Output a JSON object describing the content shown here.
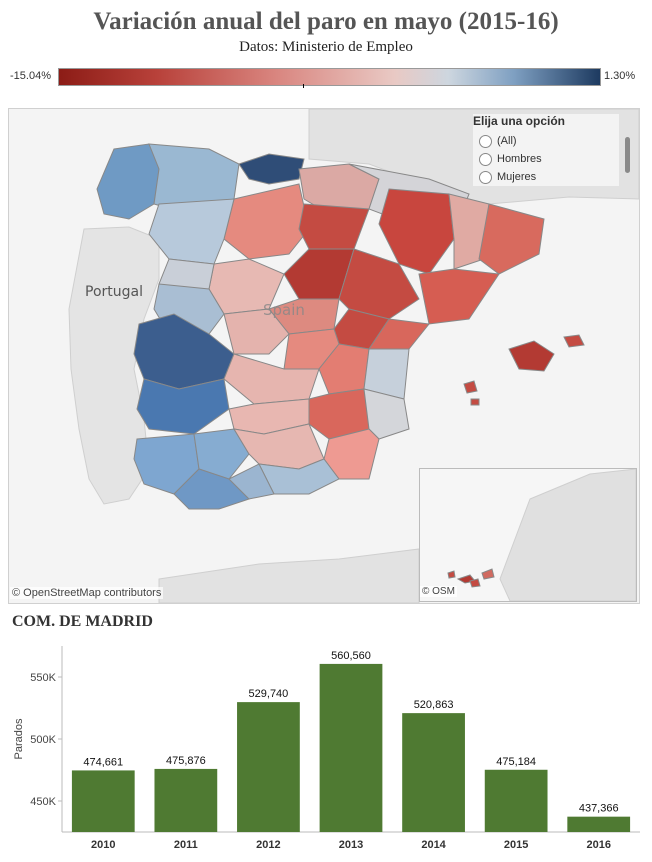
{
  "header": {
    "title": "Variación anual del paro en mayo (2015-16)",
    "subtitle": "Datos: Ministerio de Empleo"
  },
  "legend": {
    "min_label": "-15.04%",
    "max_label": "1.30%",
    "colors": {
      "neg": "#8c1c16",
      "mid": "#e8e8e8",
      "pos": "#1d3a60"
    }
  },
  "map": {
    "label_portugal": "Portugal",
    "label_spain": "Spain",
    "attribution": "© OpenStreetMap contributors",
    "inset_attribution": "© OSM"
  },
  "filter": {
    "title": "Elija una opción",
    "options": [
      "(All)",
      "Hombres",
      "Mujeres"
    ]
  },
  "section": {
    "title": "COM. DE MADRID"
  },
  "chart_data": {
    "type": "bar",
    "categories": [
      "2010",
      "2011",
      "2012",
      "2013",
      "2014",
      "2015",
      "2016"
    ],
    "values": [
      474661,
      475876,
      529740,
      560560,
      520863,
      475184,
      437366
    ],
    "value_labels": [
      "474,661",
      "475,876",
      "529,740",
      "560,560",
      "520,863",
      "475,184",
      "437,366"
    ],
    "ylabel": "Parados",
    "yticks": [
      450000,
      500000,
      550000
    ],
    "ytick_labels": [
      "450K",
      "500K",
      "550K"
    ],
    "ylim": [
      425000,
      575000
    ],
    "bar_color": "#4f7a32",
    "grid": false
  }
}
